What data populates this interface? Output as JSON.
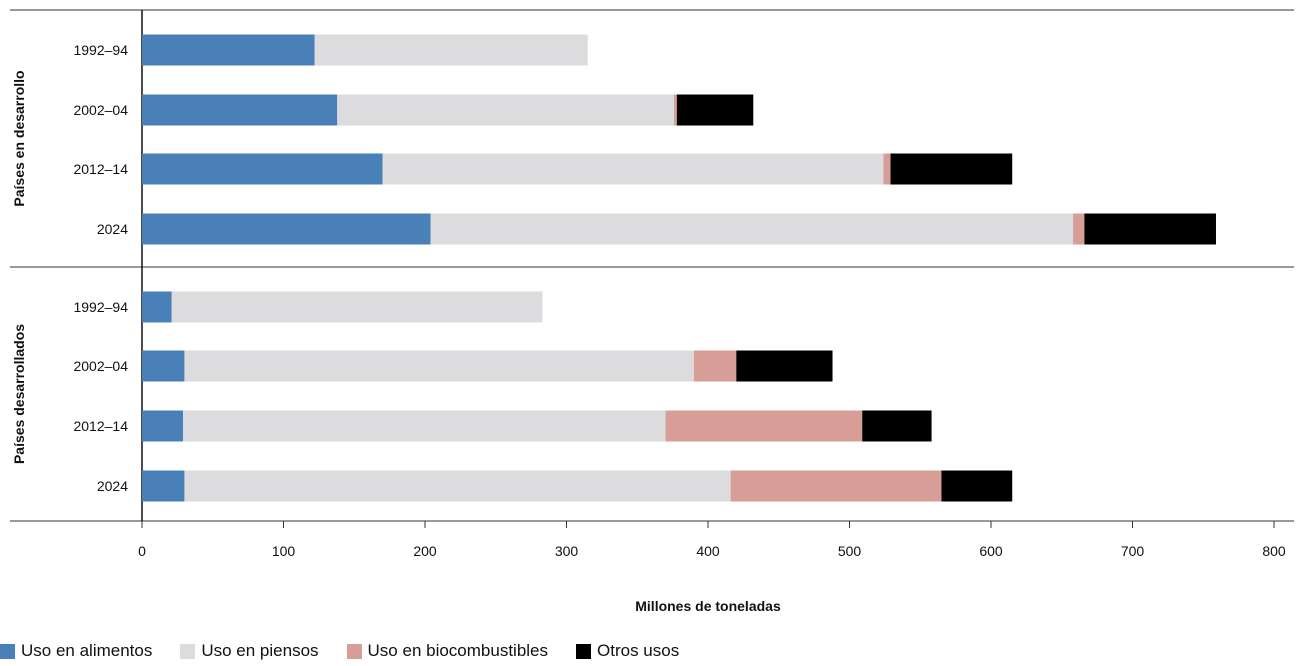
{
  "chart_data": {
    "type": "bar",
    "orientation": "horizontal",
    "stacked": true,
    "xlabel": "Millones de toneladas",
    "xlim": [
      0,
      800
    ],
    "xticks": [
      0,
      100,
      200,
      300,
      400,
      500,
      600,
      700,
      800
    ],
    "grid": false,
    "legend_position": "bottom-left",
    "series": [
      {
        "name": "Uso en alimentos",
        "color": "#4a80b8"
      },
      {
        "name": "Uso en piensos",
        "color": "#dcdcde"
      },
      {
        "name": "Uso en biocombustibles",
        "color": "#d69e96"
      },
      {
        "name": "Otros usos",
        "color": "#000000"
      }
    ],
    "groups": [
      {
        "label": "Países en desarrollo",
        "categories": [
          "1992–94",
          "2002–04",
          "2012–14",
          "2024"
        ],
        "values": [
          [
            122,
            193,
            0,
            0
          ],
          [
            138,
            238,
            2,
            54
          ],
          [
            170,
            354,
            5,
            86
          ],
          [
            204,
            454,
            8,
            93
          ]
        ]
      },
      {
        "label": "Países desarrollados",
        "categories": [
          "1992–94",
          "2002–04",
          "2012–14",
          "2024"
        ],
        "values": [
          [
            21,
            262,
            0,
            0
          ],
          [
            30,
            360,
            30,
            68
          ],
          [
            29,
            341,
            139,
            49
          ],
          [
            30,
            386,
            149,
            50
          ]
        ]
      }
    ]
  }
}
